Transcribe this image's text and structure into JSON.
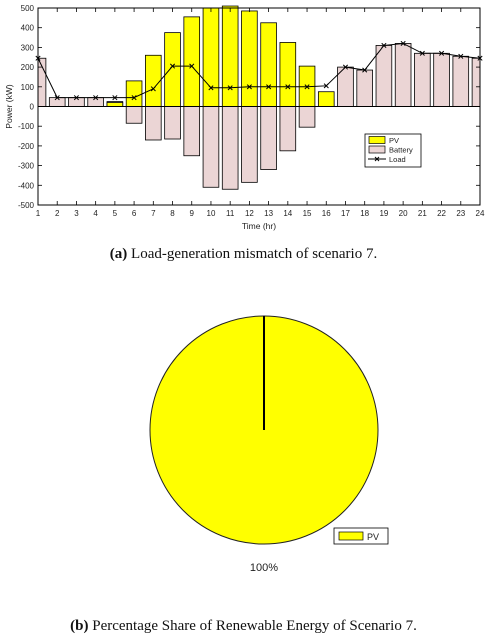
{
  "figures": [
    {
      "caption_label": "(a)",
      "caption_text": "Load-generation mismatch of scenario 7."
    },
    {
      "caption_label": "(b)",
      "caption_text": "Percentage Share of Renewable Energy of Scenario 7."
    }
  ],
  "chart_data": [
    {
      "type": "bar",
      "xlabel": "Time (hr)",
      "ylabel": "Power (kW)",
      "xlim": [
        1,
        24
      ],
      "ylim": [
        -500,
        500
      ],
      "categories": [
        1,
        2,
        3,
        4,
        5,
        6,
        7,
        8,
        9,
        10,
        11,
        12,
        13,
        14,
        15,
        16,
        17,
        18,
        19,
        20,
        21,
        22,
        23,
        24
      ],
      "yticks": [
        -500,
        -400,
        -300,
        -200,
        -100,
        0,
        100,
        200,
        300,
        400,
        500
      ],
      "legend_position": "lower-right",
      "series": [
        {
          "name": "PV",
          "kind": "bar",
          "color": "#ffff00",
          "values": [
            0,
            0,
            0,
            0,
            20,
            130,
            260,
            375,
            455,
            500,
            510,
            485,
            425,
            325,
            205,
            75,
            0,
            0,
            0,
            0,
            0,
            0,
            0,
            0
          ]
        },
        {
          "name": "Battery",
          "kind": "bar",
          "color": "#ebd5d5",
          "values": [
            245,
            45,
            45,
            45,
            25,
            -85,
            -170,
            -165,
            -250,
            -410,
            -420,
            -385,
            -320,
            -225,
            -105,
            35,
            200,
            185,
            310,
            320,
            270,
            270,
            255,
            245
          ]
        },
        {
          "name": "Load",
          "kind": "line",
          "color": "#000000",
          "marker": "x",
          "values": [
            245,
            45,
            45,
            45,
            45,
            45,
            90,
            205,
            205,
            95,
            95,
            100,
            100,
            100,
            100,
            105,
            200,
            185,
            310,
            320,
            270,
            270,
            255,
            245
          ]
        }
      ]
    },
    {
      "type": "pie",
      "labels": [
        "PV"
      ],
      "values": [
        100
      ],
      "slice_labels": [
        "100%"
      ],
      "colors": [
        "#ffff00"
      ],
      "legend_position": "lower-right"
    }
  ]
}
